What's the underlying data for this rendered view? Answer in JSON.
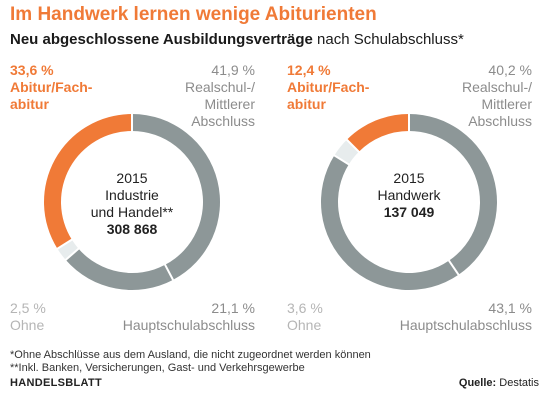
{
  "header": {
    "title": "Im Handwerk lernen wenige Abiturienten",
    "subtitle_bold": "Neu abgeschlossene Ausbildungsverträge",
    "subtitle_rest": " nach Schulabschluss*"
  },
  "chart_data": [
    {
      "type": "pie",
      "center_year": "2015",
      "center_group": "Industrie\nund Handel**",
      "center_total": "308 868",
      "labels": {
        "abitur_pct": "33,6 %",
        "abitur_name": "Abitur/Fach-\nabitur",
        "real_pct": "41,9 %",
        "real_name": "Realschul-/\nMittlerer\nAbschluss",
        "ohne_pct": "2,5 %",
        "ohne_name": "Ohne",
        "haupt_pct": "21,1 %",
        "haupt_name": "Hauptschulabschluss"
      },
      "segments": [
        {
          "name": "Realschul-/Mittlerer Abschluss",
          "value": 41.9,
          "color": "#8d9798"
        },
        {
          "name": "Hauptschulabschluss",
          "value": 21.1,
          "color": "#8d9798"
        },
        {
          "name": "Ohne",
          "value": 2.5,
          "color": "#e7eced"
        },
        {
          "name": "Abitur/Fachabitur",
          "value": 33.6,
          "color": "#f07a37"
        }
      ]
    },
    {
      "type": "pie",
      "center_year": "2015",
      "center_group": "Handwerk",
      "center_total": "137 049",
      "labels": {
        "abitur_pct": "12,4 %",
        "abitur_name": "Abitur/Fach-\nabitur",
        "real_pct": "40,2 %",
        "real_name": "Realschul-/\nMittlerer\nAbschluss",
        "ohne_pct": "3,6 %",
        "ohne_name": "Ohne",
        "haupt_pct": "43,1 %",
        "haupt_name": "Hauptschulabschluss"
      },
      "segments": [
        {
          "name": "Realschul-/Mittlerer Abschluss",
          "value": 40.2,
          "color": "#8d9798"
        },
        {
          "name": "Hauptschulabschluss",
          "value": 43.1,
          "color": "#8d9798"
        },
        {
          "name": "Ohne",
          "value": 3.6,
          "color": "#e7eced"
        },
        {
          "name": "Abitur/Fachabitur",
          "value": 12.4,
          "color": "#f07a37"
        }
      ]
    }
  ],
  "footer": {
    "footnote1": "*Ohne Abschlüsse aus dem Ausland, die nicht zugeordnet werden können",
    "footnote2": "**Inkl. Banken, Versicherungen, Gast- und Verkehrsgewerbe",
    "brand": "HANDELSBLATT",
    "source_label": "Quelle:",
    "source_value": " Destatis"
  }
}
